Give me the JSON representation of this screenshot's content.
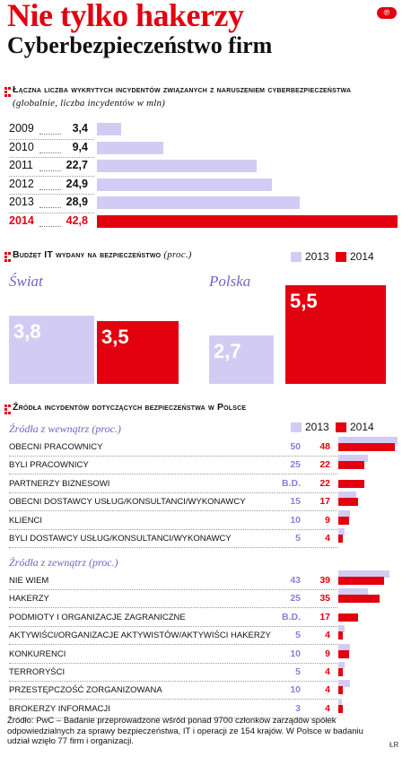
{
  "header": {
    "title": "Nie tylko hakerzy",
    "subtitle": "Cyberbezpieczeństwo firm",
    "logo": "℗"
  },
  "colors": {
    "accent": "#e3000f",
    "y2013": "#d2ccf4",
    "label_purple": "#6f63c8"
  },
  "chart_data": [
    {
      "type": "bar",
      "title_main": "Łączna liczba wykrytych incydentów związanych z naruszeniem cyberbezpieczeństwa",
      "title_note": "(globalnie, liczba incydentów w mln)",
      "categories": [
        "2009",
        "2010",
        "2011",
        "2012",
        "2013",
        "2014"
      ],
      "values": [
        3.4,
        9.4,
        22.7,
        24.9,
        28.9,
        42.8
      ],
      "value_labels": [
        "3,4",
        "9,4",
        "22,7",
        "24,9",
        "28,9",
        "42,8"
      ],
      "orientation": "horizontal",
      "highlight_last": true
    },
    {
      "type": "bar",
      "title_main": "Budżet IT wydany na bezpieczeństwo",
      "title_note": "(proc.)",
      "legend": [
        "2013",
        "2014"
      ],
      "groups": [
        {
          "label": "Świat",
          "v2013": 3.8,
          "v2014": 3.5,
          "l2013": "3,8",
          "l2014": "3,5"
        },
        {
          "label": "Polska",
          "v2013": 2.7,
          "v2014": 5.5,
          "l2013": "2,7",
          "l2014": "5,5"
        }
      ]
    },
    {
      "type": "bar",
      "title_main": "Źródła incydentów dotyczących bezpieczeństwa w Polsce",
      "legend": [
        "2013",
        "2014"
      ],
      "sections": [
        {
          "label": "Źródła z wewnątrz (proc.)",
          "rows": [
            {
              "label": "OBECNI PRACOWNICY",
              "v2013": 50,
              "v2014": 48,
              "l2013": "50",
              "l2014": "48"
            },
            {
              "label": "BYLI PRACOWNICY",
              "v2013": 25,
              "v2014": 22,
              "l2013": "25",
              "l2014": "22"
            },
            {
              "label": "PARTNERZY BIZNESOWI",
              "v2013": null,
              "v2014": 22,
              "l2013": "B.D.",
              "l2014": "22"
            },
            {
              "label": "OBECNI DOSTAWCY USŁUG/KONSULTANCI/WYKONAWCY",
              "v2013": 15,
              "v2014": 17,
              "l2013": "15",
              "l2014": "17"
            },
            {
              "label": "KLIENCI",
              "v2013": 10,
              "v2014": 9,
              "l2013": "10",
              "l2014": "9"
            },
            {
              "label": "BYLI DOSTAWCY USŁUG/KONSULTANCI/WYKONAWCY",
              "v2013": 5,
              "v2014": 4,
              "l2013": "5",
              "l2014": "4"
            }
          ]
        },
        {
          "label": "Źródła z zewnątrz (proc.)",
          "rows": [
            {
              "label": "NIE WIEM",
              "v2013": 43,
              "v2014": 39,
              "l2013": "43",
              "l2014": "39"
            },
            {
              "label": "HAKERZY",
              "v2013": 25,
              "v2014": 35,
              "l2013": "25",
              "l2014": "35"
            },
            {
              "label": "PODMIOTY I ORGANIZACJE ZAGRANICZNE",
              "v2013": null,
              "v2014": 17,
              "l2013": "B.D.",
              "l2014": "17"
            },
            {
              "label": "AKTYWIŚCI/ORGANIZACJE AKTYWISTÓW/AKTYWIŚCI HAKERZY",
              "v2013": 5,
              "v2014": 4,
              "l2013": "5",
              "l2014": "4"
            },
            {
              "label": "KONKURENCI",
              "v2013": 10,
              "v2014": 9,
              "l2013": "10",
              "l2014": "9"
            },
            {
              "label": "TERRORYŚCI",
              "v2013": 5,
              "v2014": 4,
              "l2013": "5",
              "l2014": "4"
            },
            {
              "label": "PRZESTĘPCZOŚĆ ZORGANIZOWANA",
              "v2013": 10,
              "v2014": 4,
              "l2013": "10",
              "l2014": "4"
            },
            {
              "label": "BROKERZY INFORMACJI",
              "v2013": 3,
              "v2014": 4,
              "l2013": "3",
              "l2014": "4"
            }
          ]
        }
      ]
    }
  ],
  "footer": {
    "source": "Źródło: PwC – Badanie przeprowadzone wśród ponad 9700 członków zarządów spółek odpowiedzialnych za sprawy bezpieczeństwa, IT i operacji ze 154 krajów. W Polsce w badaniu udział wzięło 77 firm i organizacji.",
    "author": "ŁR"
  }
}
